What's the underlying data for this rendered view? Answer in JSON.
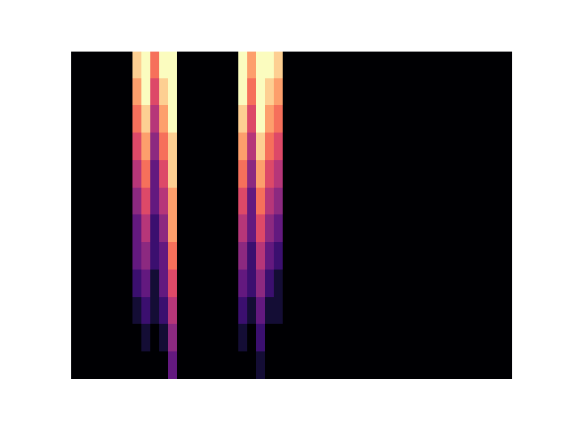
{
  "chart_data": {
    "type": "heatmap",
    "color": "magma",
    "tick_labels": false,
    "clim": [
      0,
      1
    ],
    "cells": [
      [
        0,
        0,
        0,
        0,
        0,
        0,
        0,
        0.9,
        1,
        0.7,
        1,
        1,
        0,
        0,
        0,
        0,
        0,
        0,
        0,
        1,
        0.8,
        1,
        1,
        0.9,
        0,
        0,
        0,
        0,
        0,
        0,
        0,
        0,
        0,
        0,
        0,
        0,
        0,
        0,
        0,
        0,
        0,
        0,
        0,
        0,
        0,
        0,
        0,
        0,
        0,
        0
      ],
      [
        0,
        0,
        0,
        0,
        0,
        0,
        0,
        0.8,
        1,
        0.6,
        0.9,
        1,
        0,
        0,
        0,
        0,
        0,
        0,
        0,
        1,
        0.7,
        1,
        0.9,
        0.8,
        0,
        0,
        0,
        0,
        0,
        0,
        0,
        0,
        0,
        0,
        0,
        0,
        0,
        0,
        0,
        0,
        0,
        0,
        0,
        0,
        0,
        0,
        0,
        0,
        0,
        0
      ],
      [
        0,
        0,
        0,
        0,
        0,
        0,
        0,
        0.7,
        0.9,
        0.5,
        0.8,
        1,
        0,
        0,
        0,
        0,
        0,
        0,
        0,
        0.9,
        0.6,
        1,
        0.8,
        0.7,
        0,
        0,
        0,
        0,
        0,
        0,
        0,
        0,
        0,
        0,
        0,
        0,
        0,
        0,
        0,
        0,
        0,
        0,
        0,
        0,
        0,
        0,
        0,
        0,
        0,
        0
      ],
      [
        0,
        0,
        0,
        0,
        0,
        0,
        0,
        0.6,
        0.8,
        0.4,
        0.7,
        0.9,
        0,
        0,
        0,
        0,
        0,
        0,
        0,
        0.8,
        0.5,
        0.9,
        0.7,
        0.6,
        0,
        0,
        0,
        0,
        0,
        0,
        0,
        0,
        0,
        0,
        0,
        0,
        0,
        0,
        0,
        0,
        0,
        0,
        0,
        0,
        0,
        0,
        0,
        0,
        0,
        0
      ],
      [
        0,
        0,
        0,
        0,
        0,
        0,
        0,
        0.5,
        0.7,
        0.3,
        0.6,
        0.9,
        0,
        0,
        0,
        0,
        0,
        0,
        0,
        0.7,
        0.4,
        0.8,
        0.6,
        0.5,
        0,
        0,
        0,
        0,
        0,
        0,
        0,
        0,
        0,
        0,
        0,
        0,
        0,
        0,
        0,
        0,
        0,
        0,
        0,
        0,
        0,
        0,
        0,
        0,
        0,
        0
      ],
      [
        0,
        0,
        0,
        0,
        0,
        0,
        0,
        0.4,
        0.6,
        0.3,
        0.5,
        0.8,
        0,
        0,
        0,
        0,
        0,
        0,
        0,
        0.6,
        0.3,
        0.7,
        0.5,
        0.4,
        0,
        0,
        0,
        0,
        0,
        0,
        0,
        0,
        0,
        0,
        0,
        0,
        0,
        0,
        0,
        0,
        0,
        0,
        0,
        0,
        0,
        0,
        0,
        0,
        0,
        0
      ],
      [
        0,
        0,
        0,
        0,
        0,
        0,
        0,
        0.3,
        0.5,
        0.2,
        0.4,
        0.8,
        0,
        0,
        0,
        0,
        0,
        0,
        0,
        0.5,
        0.3,
        0.6,
        0.4,
        0.3,
        0,
        0,
        0,
        0,
        0,
        0,
        0,
        0,
        0,
        0,
        0,
        0,
        0,
        0,
        0,
        0,
        0,
        0,
        0,
        0,
        0,
        0,
        0,
        0,
        0,
        0
      ],
      [
        0,
        0,
        0,
        0,
        0,
        0,
        0,
        0.3,
        0.4,
        0.2,
        0.3,
        0.7,
        0,
        0,
        0,
        0,
        0,
        0,
        0,
        0.4,
        0.2,
        0.5,
        0.3,
        0.2,
        0,
        0,
        0,
        0,
        0,
        0,
        0,
        0,
        0,
        0,
        0,
        0,
        0,
        0,
        0,
        0,
        0,
        0,
        0,
        0,
        0,
        0,
        0,
        0,
        0,
        0
      ],
      [
        0,
        0,
        0,
        0,
        0,
        0,
        0,
        0.2,
        0.3,
        0.1,
        0.3,
        0.6,
        0,
        0,
        0,
        0,
        0,
        0,
        0,
        0.3,
        0.2,
        0.4,
        0.2,
        0.1,
        0,
        0,
        0,
        0,
        0,
        0,
        0,
        0,
        0,
        0,
        0,
        0,
        0,
        0,
        0,
        0,
        0,
        0,
        0,
        0,
        0,
        0,
        0,
        0,
        0,
        0
      ],
      [
        0,
        0,
        0,
        0,
        0,
        0,
        0,
        0.1,
        0.2,
        0.1,
        0.2,
        0.5,
        0,
        0,
        0,
        0,
        0,
        0,
        0,
        0.2,
        0.1,
        0.3,
        0.1,
        0.1,
        0,
        0,
        0,
        0,
        0,
        0,
        0,
        0,
        0,
        0,
        0,
        0,
        0,
        0,
        0,
        0,
        0,
        0,
        0,
        0,
        0,
        0,
        0,
        0,
        0,
        0
      ],
      [
        0,
        0,
        0,
        0,
        0,
        0,
        0,
        0,
        0.1,
        0,
        0.1,
        0.4,
        0,
        0,
        0,
        0,
        0,
        0,
        0,
        0.1,
        0,
        0.2,
        0,
        0,
        0,
        0,
        0,
        0,
        0,
        0,
        0,
        0,
        0,
        0,
        0,
        0,
        0,
        0,
        0,
        0,
        0,
        0,
        0,
        0,
        0,
        0,
        0,
        0,
        0,
        0
      ],
      [
        0,
        0,
        0,
        0,
        0,
        0,
        0,
        0,
        0,
        0,
        0,
        0.3,
        0,
        0,
        0,
        0,
        0,
        0,
        0,
        0,
        0,
        0.1,
        0,
        0,
        0,
        0,
        0,
        0,
        0,
        0,
        0,
        0,
        0,
        0,
        0,
        0,
        0,
        0,
        0,
        0,
        0,
        0,
        0,
        0,
        0,
        0,
        0,
        0,
        0,
        0
      ]
    ]
  }
}
